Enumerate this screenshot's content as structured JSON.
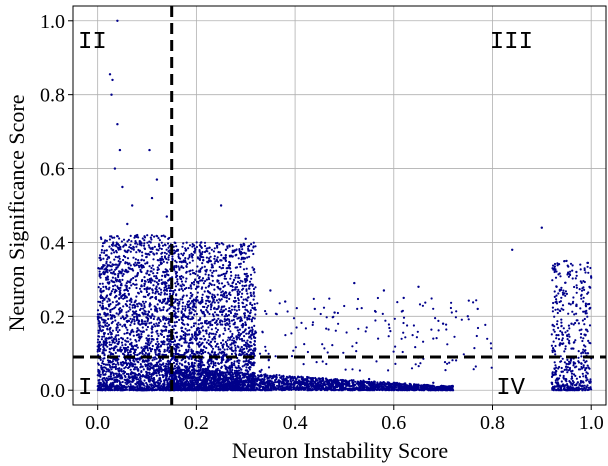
{
  "chart_data": {
    "type": "scatter",
    "title": "",
    "xlabel": "Neuron Instability Score",
    "ylabel": "Neuron Significance Score",
    "xlim": [
      -0.05,
      1.03
    ],
    "ylim": [
      -0.04,
      1.04
    ],
    "xticks": [
      0.0,
      0.2,
      0.4,
      0.6,
      0.8,
      1.0
    ],
    "yticks": [
      0.0,
      0.2,
      0.4,
      0.6,
      0.8,
      1.0
    ],
    "xtick_labels": [
      "0.0",
      "0.2",
      "0.4",
      "0.6",
      "0.8",
      "1.0"
    ],
    "ytick_labels": [
      "0.0",
      "0.2",
      "0.4",
      "0.6",
      "0.8",
      "1.0"
    ],
    "grid": true,
    "point_color": "#00008b",
    "threshold_lines": {
      "x": 0.15,
      "y": 0.09
    },
    "quadrant_labels": [
      {
        "label": "I",
        "position": "bottom-left"
      },
      {
        "label": "II",
        "position": "top-left"
      },
      {
        "label": "III",
        "position": "top-right"
      },
      {
        "label": "IV",
        "position": "bottom-right"
      }
    ],
    "clusters": [
      {
        "x": [
          0.0,
          0.15
        ],
        "y": [
          0.0,
          0.42
        ],
        "density": "high"
      },
      {
        "x": [
          0.15,
          0.32
        ],
        "y": [
          0.0,
          0.4
        ],
        "density": "high"
      },
      {
        "x": [
          0.15,
          0.72
        ],
        "y": [
          0.0,
          0.06
        ],
        "density": "high"
      },
      {
        "x": [
          0.3,
          0.8
        ],
        "y": [
          0.05,
          0.25
        ],
        "density": "sparse"
      },
      {
        "x": [
          0.92,
          1.0
        ],
        "y": [
          0.0,
          0.35
        ],
        "density": "medium"
      }
    ],
    "points": [
      [
        0.025,
        0.855
      ],
      [
        0.03,
        0.84
      ],
      [
        0.028,
        0.8
      ],
      [
        0.04,
        0.72
      ],
      [
        0.045,
        0.65
      ],
      [
        0.035,
        0.6
      ],
      [
        0.05,
        0.55
      ],
      [
        0.07,
        0.5
      ],
      [
        0.06,
        0.45
      ],
      [
        0.08,
        0.42
      ],
      [
        0.04,
        1.0
      ],
      [
        0.105,
        0.65
      ],
      [
        0.12,
        0.57
      ],
      [
        0.11,
        0.52
      ],
      [
        0.14,
        0.47
      ],
      [
        0.21,
        0.4
      ],
      [
        0.25,
        0.5
      ],
      [
        0.26,
        0.38
      ],
      [
        0.3,
        0.41
      ],
      [
        0.35,
        0.27
      ],
      [
        0.38,
        0.24
      ],
      [
        0.44,
        0.22
      ],
      [
        0.48,
        0.21
      ],
      [
        0.52,
        0.29
      ],
      [
        0.58,
        0.27
      ],
      [
        0.62,
        0.25
      ],
      [
        0.65,
        0.28
      ],
      [
        0.7,
        0.18
      ],
      [
        0.75,
        0.2
      ],
      [
        0.77,
        0.22
      ],
      [
        0.84,
        0.38
      ],
      [
        0.9,
        0.44
      ],
      [
        0.95,
        0.35
      ],
      [
        0.97,
        0.32
      ],
      [
        0.93,
        0.28
      ],
      [
        0.96,
        0.18
      ],
      [
        0.98,
        0.1
      ],
      [
        0.99,
        0.06
      ],
      [
        0.94,
        0.05
      ],
      [
        0.92,
        0.02
      ],
      [
        0.02,
        0.3
      ],
      [
        0.01,
        0.25
      ],
      [
        0.06,
        0.2
      ],
      [
        0.09,
        0.18
      ],
      [
        0.13,
        0.15
      ],
      [
        0.17,
        0.12
      ],
      [
        0.22,
        0.16
      ],
      [
        0.28,
        0.2
      ],
      [
        0.33,
        0.05
      ],
      [
        0.45,
        0.03
      ],
      [
        0.55,
        0.03
      ],
      [
        0.6,
        0.02
      ],
      [
        0.68,
        0.02
      ],
      [
        0.72,
        0.0
      ]
    ]
  }
}
